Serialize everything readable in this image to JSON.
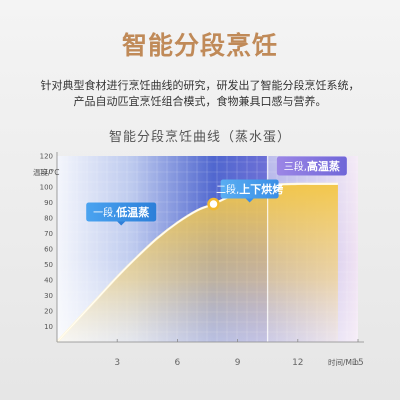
{
  "header": {
    "title": "智能分段烹饪",
    "desc_line1": "针对典型食材进行烹饪曲线的研究，研发出了智能分段烹饪系统，",
    "desc_line2": "产品自动匹宜烹饪组合模式，食物兼具口感与营养。"
  },
  "chart_data": {
    "type": "line",
    "title": "智能分段烹饪曲线（蒸水蛋）",
    "ylabel": "温度/°C",
    "xlabel": "时间/Min",
    "xlim": [
      0,
      15
    ],
    "ylim": [
      0,
      120
    ],
    "x_ticks": [
      3,
      6,
      9,
      12,
      15
    ],
    "y_ticks": [
      10,
      20,
      30,
      40,
      50,
      60,
      70,
      80,
      90,
      100,
      110,
      120
    ],
    "grid": true,
    "stages": [
      {
        "prefix": "一段,",
        "name": "低温蒸",
        "x_start": 0,
        "x_end": 7.8,
        "color": "#2f7fd8"
      },
      {
        "prefix": "二段,",
        "name": "上下烘烤",
        "x_start": 7.8,
        "x_end": 10.5,
        "color": "#3a8ee6"
      },
      {
        "prefix": "三段,",
        "name": "高温蒸",
        "x_start": 10.5,
        "x_end": 15,
        "color": "#8a7ae0"
      }
    ],
    "series": [
      {
        "x": [
          0,
          1,
          2,
          3,
          4,
          5,
          6,
          7,
          7.8,
          9,
          10.5,
          12,
          13,
          14
        ],
        "y": [
          0,
          14,
          28,
          42,
          55,
          67,
          77,
          85,
          89,
          96,
          101,
          102,
          102,
          102
        ]
      }
    ],
    "markers": [
      {
        "x": 7.8,
        "y": 89
      },
      {
        "x": 10.5,
        "y": 101
      }
    ]
  }
}
